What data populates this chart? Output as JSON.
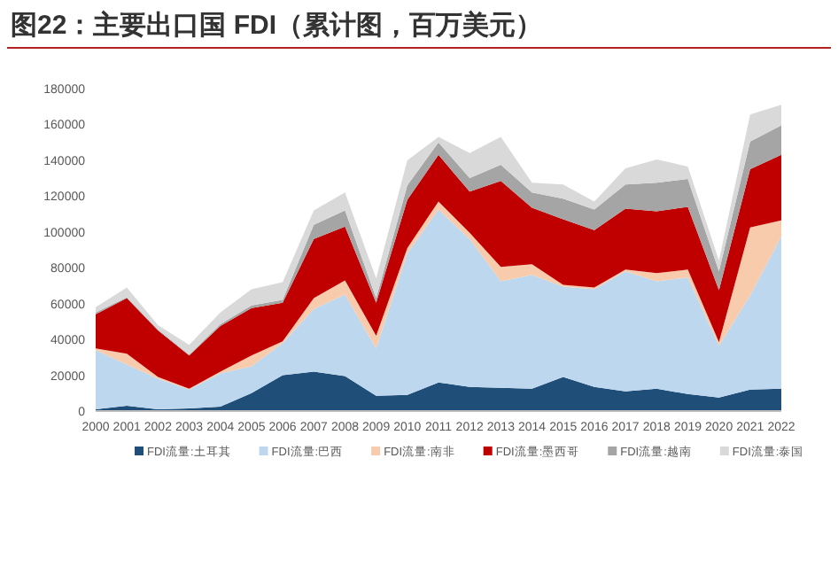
{
  "chart_data": {
    "type": "area",
    "stacked": true,
    "title": "图22：主要出口国 FDI（累计图，百万美元）",
    "categories": [
      "2000",
      "2001",
      "2002",
      "2003",
      "2004",
      "2005",
      "2006",
      "2007",
      "2008",
      "2009",
      "2010",
      "2011",
      "2012",
      "2013",
      "2014",
      "2015",
      "2016",
      "2017",
      "2018",
      "2019",
      "2020",
      "2021",
      "2022"
    ],
    "series": [
      {
        "name": "FDI流量:土耳其",
        "color": "#1f4e79",
        "values": [
          1000,
          3000,
          1000,
          1500,
          2500,
          10000,
          20000,
          22000,
          19500,
          8500,
          9000,
          16000,
          13500,
          13000,
          12500,
          19000,
          13500,
          11000,
          12500,
          9500,
          7500,
          12000,
          12500
        ]
      },
      {
        "name": "FDI流量:巴西",
        "color": "#bdd7ee",
        "values": [
          33000,
          23000,
          17000,
          10500,
          18500,
          15000,
          18000,
          35000,
          45500,
          26500,
          79000,
          96500,
          82500,
          59500,
          63500,
          50500,
          54500,
          67000,
          60000,
          65000,
          29000,
          52500,
          85000
        ]
      },
      {
        "name": "FDI流量:南非",
        "color": "#f8cbad",
        "values": [
          1000,
          6000,
          1000,
          500,
          1000,
          6000,
          1000,
          6000,
          8000,
          7000,
          3000,
          4500,
          3500,
          8000,
          6000,
          1000,
          1000,
          1000,
          4500,
          4500,
          2000,
          38000,
          9000
        ]
      },
      {
        "name": "FDI流量:墨西哥",
        "color": "#c00000",
        "values": [
          19000,
          31000,
          26000,
          18500,
          25500,
          26500,
          21500,
          33000,
          30000,
          18500,
          27000,
          26000,
          23000,
          48000,
          31500,
          36500,
          32000,
          34000,
          34500,
          35000,
          29000,
          32500,
          36500
        ]
      },
      {
        "name": "FDI流量:越南",
        "color": "#a5a5a5",
        "values": [
          1000,
          500,
          500,
          500,
          1000,
          1500,
          1500,
          8000,
          9000,
          2500,
          8000,
          7000,
          7500,
          9000,
          8500,
          11500,
          11500,
          13500,
          16000,
          15500,
          10500,
          15500,
          16500
        ]
      },
      {
        "name": "FDI流量:泰国",
        "color": "#d9d9d9",
        "values": [
          3000,
          5500,
          2500,
          5500,
          6500,
          9000,
          10000,
          8000,
          10000,
          11000,
          14000,
          3000,
          14000,
          15500,
          5500,
          8000,
          4500,
          9000,
          13000,
          7000,
          6000,
          15000,
          11500
        ]
      }
    ],
    "ylim": [
      0,
      180000
    ],
    "yticks": [
      0,
      20000,
      40000,
      60000,
      80000,
      100000,
      120000,
      140000,
      160000,
      180000
    ],
    "grid": false,
    "legend": "bottom"
  }
}
